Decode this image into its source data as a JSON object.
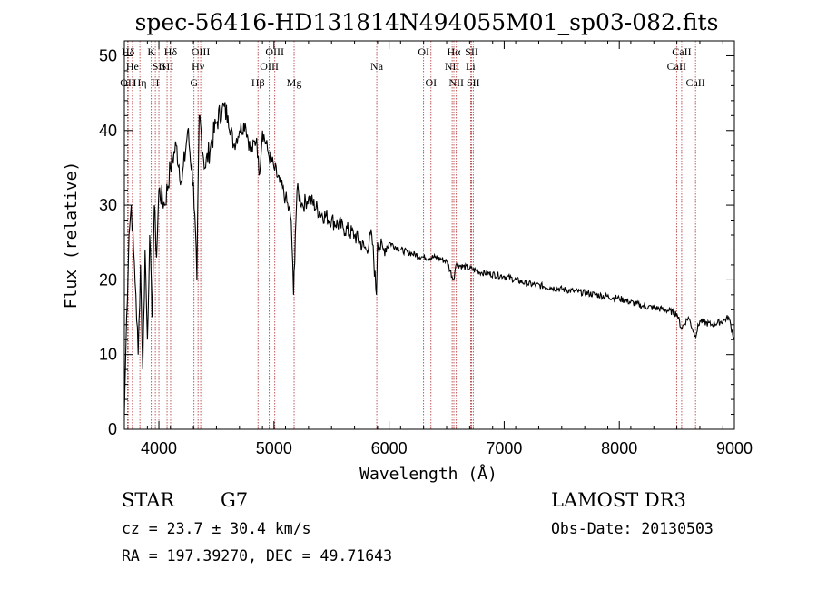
{
  "chart_data": {
    "type": "line",
    "title": "spec-56416-HD131814N494055M01_sp03-082.fits",
    "xlabel": "Wavelength (Å)",
    "ylabel": "Flux (relative)",
    "xlim": [
      3700,
      9000
    ],
    "ylim": [
      0,
      52
    ],
    "xticks": [
      4000,
      5000,
      6000,
      7000,
      8000,
      9000
    ],
    "yticks": [
      0,
      10,
      20,
      30,
      40,
      50
    ],
    "series": [
      {
        "name": "flux",
        "x": [
          3700,
          3720,
          3740,
          3760,
          3780,
          3800,
          3820,
          3840,
          3860,
          3880,
          3900,
          3920,
          3940,
          3960,
          3980,
          4000,
          4050,
          4100,
          4150,
          4200,
          4250,
          4300,
          4330,
          4350,
          4400,
          4450,
          4500,
          4550,
          4600,
          4650,
          4700,
          4750,
          4800,
          4850,
          4870,
          4900,
          4950,
          5000,
          5050,
          5100,
          5150,
          5170,
          5185,
          5200,
          5250,
          5300,
          5400,
          5500,
          5600,
          5700,
          5800,
          5850,
          5890,
          5900,
          5950,
          6000,
          6100,
          6200,
          6300,
          6400,
          6500,
          6560,
          6580,
          6600,
          6700,
          6800,
          7000,
          7200,
          7400,
          7600,
          7800,
          8000,
          8200,
          8400,
          8500,
          8540,
          8600,
          8660,
          8700,
          8800,
          8900,
          8950,
          9000
        ],
        "y": [
          2,
          15,
          26,
          30,
          24,
          18,
          10,
          22,
          8,
          24,
          12,
          26,
          15,
          30,
          23,
          32,
          30,
          35,
          38,
          33,
          40,
          33,
          20,
          42,
          35,
          38,
          41,
          43,
          42,
          38,
          40,
          41,
          37,
          39,
          34,
          40,
          37,
          35,
          33,
          31,
          28,
          18,
          26,
          32,
          30,
          31,
          29,
          28,
          27,
          26,
          24,
          26,
          18,
          25,
          24,
          25,
          24,
          23.5,
          23,
          23,
          22.5,
          20,
          22,
          22,
          21.5,
          21,
          20.5,
          19.5,
          19,
          18.5,
          18,
          17.5,
          16.5,
          16,
          15.5,
          13.5,
          15,
          12.5,
          14.5,
          14,
          14.5,
          15,
          12
        ]
      }
    ],
    "spectral_lines": [
      {
        "label": "Hδ",
        "wavelength": 3733,
        "row": 1
      },
      {
        "label": "OII",
        "wavelength": 3728,
        "row": 3
      },
      {
        "label": "He",
        "wavelength": 3770,
        "row": 2
      },
      {
        "label": "Hη",
        "wavelength": 3835,
        "row": 3
      },
      {
        "label": "K",
        "wavelength": 3934,
        "row": 1
      },
      {
        "label": "SII",
        "wavelength": 4000,
        "row": 2
      },
      {
        "label": "H",
        "wavelength": 3969,
        "row": 3
      },
      {
        "label": "Hδ",
        "wavelength": 4102,
        "row": 1
      },
      {
        "label": "SII",
        "wavelength": 4071,
        "row": 2
      },
      {
        "label": "OIII",
        "wavelength": 4363,
        "row": 1
      },
      {
        "label": "Hγ",
        "wavelength": 4340,
        "row": 2
      },
      {
        "label": "G",
        "wavelength": 4305,
        "row": 3
      },
      {
        "label": "OIII",
        "wavelength": 5007,
        "row": 1
      },
      {
        "label": "OIII",
        "wavelength": 4959,
        "row": 2
      },
      {
        "label": "Hβ",
        "wavelength": 4861,
        "row": 3
      },
      {
        "label": "Mg",
        "wavelength": 5175,
        "row": 3
      },
      {
        "label": "Na",
        "wavelength": 5893,
        "row": 2
      },
      {
        "label": "OI",
        "wavelength": 6300,
        "row": 1
      },
      {
        "label": "OI",
        "wavelength": 6364,
        "row": 3
      },
      {
        "label": "Hα",
        "wavelength": 6563,
        "row": 1
      },
      {
        "label": "NII",
        "wavelength": 6548,
        "row": 2
      },
      {
        "label": "NII",
        "wavelength": 6584,
        "row": 3
      },
      {
        "label": "SII",
        "wavelength": 6717,
        "row": 1
      },
      {
        "label": "Li",
        "wavelength": 6708,
        "row": 2
      },
      {
        "label": "SII",
        "wavelength": 6731,
        "row": 3
      },
      {
        "label": "CaII",
        "wavelength": 8542,
        "row": 1
      },
      {
        "label": "CaII",
        "wavelength": 8498,
        "row": 2
      },
      {
        "label": "CaII",
        "wavelength": 8662,
        "row": 3
      }
    ]
  },
  "info": {
    "class": "STAR",
    "subclass": "G7",
    "survey": "LAMOST DR3",
    "redshift": "cz = 23.7 ± 30.4 km/s",
    "obs_date": "Obs-Date: 20130503",
    "coords": "RA = 197.39270, DEC =  49.71643"
  }
}
